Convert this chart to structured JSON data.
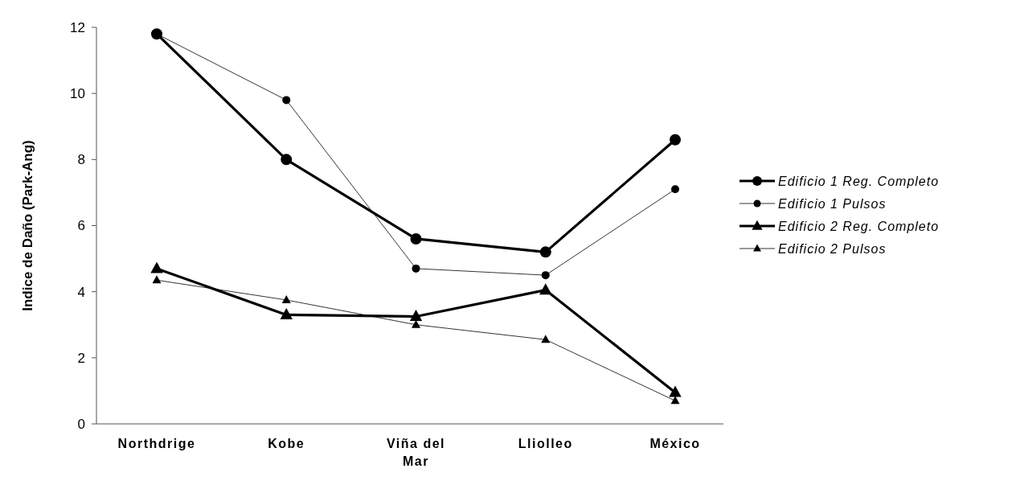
{
  "chart_data": {
    "type": "line",
    "ylabel": "Indice de Daño (Park-Ang)",
    "categories": [
      "Northdrige",
      "Kobe",
      "Viña del Mar",
      "Lliolleo",
      "México"
    ],
    "ylim": [
      0,
      12
    ],
    "yticks": [
      0,
      2,
      4,
      6,
      8,
      10,
      12
    ],
    "grid": false,
    "legend": "right",
    "line_style": "solid",
    "series": [
      {
        "name": "Edificio 1 Reg. Completo",
        "color": "#000000",
        "marker": "circle",
        "values": [
          11.8,
          8.0,
          5.6,
          5.2,
          8.6
        ]
      },
      {
        "name": "Edificio 1 Pulsos",
        "color": "#000000",
        "marker": "circle",
        "values": [
          11.8,
          9.8,
          4.7,
          4.5,
          7.1
        ]
      },
      {
        "name": "Edificio 2 Reg. Completo",
        "color": "#000000",
        "marker": "triangle",
        "values": [
          4.7,
          3.3,
          3.25,
          4.05,
          0.95
        ]
      },
      {
        "name": "Edificio 2 Pulsos",
        "color": "#000000",
        "marker": "triangle",
        "values": [
          4.35,
          3.75,
          3.0,
          2.55,
          0.7
        ]
      }
    ]
  }
}
